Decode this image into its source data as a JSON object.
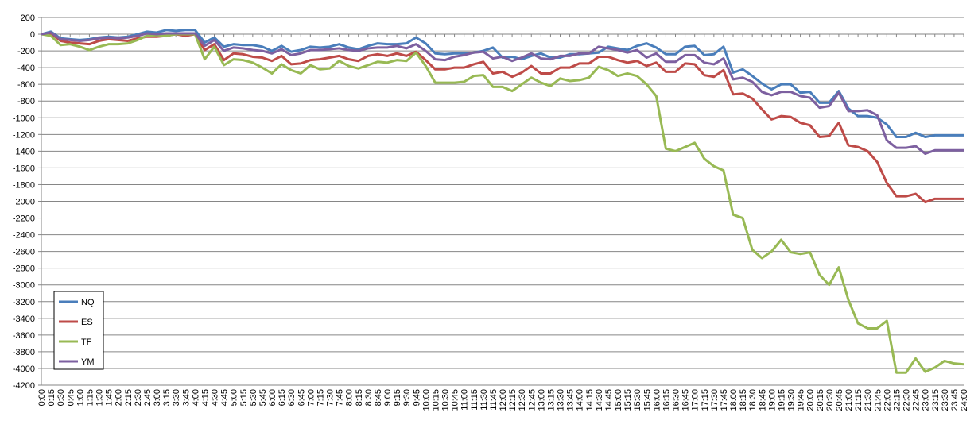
{
  "chart_data": {
    "type": "line",
    "categories": [
      "0:00",
      "0:15",
      "0:30",
      "0:45",
      "1:00",
      "1:15",
      "1:30",
      "1:45",
      "2:00",
      "2:15",
      "2:30",
      "2:45",
      "3:00",
      "3:15",
      "3:30",
      "3:45",
      "4:00",
      "4:15",
      "4:30",
      "4:45",
      "5:00",
      "5:15",
      "5:30",
      "5:45",
      "6:00",
      "6:15",
      "6:30",
      "6:45",
      "7:00",
      "7:15",
      "7:30",
      "7:45",
      "8:00",
      "8:15",
      "8:30",
      "8:45",
      "9:00",
      "9:15",
      "9:30",
      "9:45",
      "10:00",
      "10:15",
      "10:30",
      "10:45",
      "11:00",
      "11:15",
      "11:30",
      "11:45",
      "12:00",
      "12:15",
      "12:30",
      "12:45",
      "13:00",
      "13:15",
      "13:30",
      "13:45",
      "14:00",
      "14:15",
      "14:30",
      "14:45",
      "15:00",
      "15:15",
      "15:30",
      "15:45",
      "16:00",
      "16:15",
      "16:30",
      "16:45",
      "17:00",
      "17:15",
      "17:30",
      "17:45",
      "18:00",
      "18:15",
      "18:30",
      "18:45",
      "19:00",
      "19:15",
      "19:30",
      "19:45",
      "20:00",
      "20:15",
      "20:30",
      "20:45",
      "21:00",
      "21:15",
      "21:30",
      "21:45",
      "22:00",
      "22:15",
      "22:30",
      "22:45",
      "23:00",
      "23:15",
      "23:30",
      "23:45",
      "24:00"
    ],
    "series": [
      {
        "name": "NQ",
        "color": "#4a7ebb",
        "values": [
          0,
          30,
          -50,
          -60,
          -70,
          -60,
          -40,
          -30,
          -40,
          -30,
          0,
          30,
          20,
          50,
          40,
          50,
          50,
          -100,
          -40,
          -150,
          -120,
          -130,
          -130,
          -150,
          -200,
          -140,
          -210,
          -190,
          -150,
          -160,
          -150,
          -120,
          -160,
          -180,
          -140,
          -110,
          -120,
          -120,
          -110,
          -40,
          -110,
          -230,
          -240,
          -230,
          -230,
          -220,
          -200,
          -160,
          -280,
          -270,
          -300,
          -260,
          -230,
          -280,
          -280,
          -240,
          -240,
          -230,
          -220,
          -150,
          -170,
          -190,
          -140,
          -110,
          -160,
          -240,
          -240,
          -150,
          -140,
          -250,
          -240,
          -150,
          -460,
          -420,
          -500,
          -590,
          -660,
          -600,
          -600,
          -700,
          -690,
          -820,
          -820,
          -680,
          -890,
          -980,
          -980,
          -1000,
          -1080,
          -1230,
          -1230,
          -1180,
          -1230,
          -1210,
          -1210,
          -1210,
          -1210
        ]
      },
      {
        "name": "ES",
        "color": "#be4b48",
        "values": [
          0,
          10,
          -80,
          -100,
          -110,
          -120,
          -80,
          -60,
          -70,
          -80,
          -50,
          -30,
          -30,
          -20,
          0,
          -20,
          0,
          -190,
          -120,
          -310,
          -230,
          -240,
          -270,
          -280,
          -320,
          -260,
          -360,
          -350,
          -310,
          -300,
          -280,
          -260,
          -300,
          -320,
          -260,
          -240,
          -260,
          -230,
          -260,
          -210,
          -310,
          -420,
          -420,
          -400,
          -400,
          -360,
          -330,
          -470,
          -450,
          -510,
          -460,
          -380,
          -470,
          -470,
          -400,
          -400,
          -350,
          -350,
          -270,
          -270,
          -310,
          -340,
          -320,
          -380,
          -340,
          -450,
          -450,
          -350,
          -360,
          -490,
          -510,
          -430,
          -720,
          -710,
          -770,
          -900,
          -1020,
          -980,
          -990,
          -1060,
          -1090,
          -1230,
          -1220,
          -1060,
          -1330,
          -1350,
          -1400,
          -1530,
          -1780,
          -1940,
          -1940,
          -1910,
          -2010,
          -1970,
          -1970,
          -1970,
          -1970
        ]
      },
      {
        "name": "TF",
        "color": "#98b954",
        "values": [
          0,
          -20,
          -130,
          -120,
          -150,
          -190,
          -150,
          -120,
          -120,
          -110,
          -70,
          -20,
          -10,
          -20,
          0,
          0,
          0,
          -300,
          -150,
          -370,
          -300,
          -310,
          -340,
          -400,
          -470,
          -360,
          -430,
          -470,
          -370,
          -420,
          -410,
          -320,
          -380,
          -410,
          -370,
          -330,
          -340,
          -310,
          -320,
          -220,
          -380,
          -580,
          -580,
          -580,
          -570,
          -500,
          -490,
          -630,
          -630,
          -680,
          -600,
          -520,
          -580,
          -620,
          -530,
          -560,
          -550,
          -520,
          -390,
          -430,
          -500,
          -470,
          -500,
          -600,
          -740,
          -1370,
          -1400,
          -1350,
          -1300,
          -1490,
          -1580,
          -1630,
          -2160,
          -2200,
          -2580,
          -2680,
          -2600,
          -2460,
          -2610,
          -2630,
          -2610,
          -2880,
          -3000,
          -2790,
          -3180,
          -3460,
          -3520,
          -3520,
          -3430,
          -4050,
          -4050,
          -3880,
          -4040,
          -3990,
          -3910,
          -3940,
          -3950
        ]
      },
      {
        "name": "YM",
        "color": "#7d60a0",
        "values": [
          0,
          20,
          -60,
          -70,
          -80,
          -70,
          -50,
          -40,
          -50,
          -40,
          -20,
          10,
          0,
          10,
          10,
          10,
          10,
          -140,
          -70,
          -200,
          -160,
          -170,
          -190,
          -200,
          -230,
          -180,
          -250,
          -230,
          -190,
          -190,
          -180,
          -170,
          -190,
          -200,
          -170,
          -160,
          -160,
          -140,
          -170,
          -120,
          -200,
          -300,
          -310,
          -270,
          -250,
          -220,
          -210,
          -290,
          -270,
          -320,
          -280,
          -230,
          -290,
          -300,
          -260,
          -260,
          -230,
          -230,
          -150,
          -170,
          -190,
          -220,
          -190,
          -280,
          -230,
          -330,
          -330,
          -250,
          -250,
          -340,
          -360,
          -290,
          -540,
          -520,
          -570,
          -690,
          -730,
          -690,
          -690,
          -740,
          -760,
          -880,
          -860,
          -700,
          -920,
          -920,
          -910,
          -970,
          -1270,
          -1360,
          -1360,
          -1340,
          -1430,
          -1390,
          -1390,
          -1390,
          -1390
        ]
      }
    ],
    "ylim": [
      -4200,
      200
    ],
    "yticks": [
      200,
      0,
      -200,
      -400,
      -600,
      -800,
      -1000,
      -1200,
      -1400,
      -1600,
      -1800,
      -2000,
      -2200,
      -2400,
      -2600,
      -2800,
      -3000,
      -3200,
      -3400,
      -3600,
      -3800,
      -4000,
      -4200
    ],
    "grid": true,
    "legend": "lower left"
  }
}
